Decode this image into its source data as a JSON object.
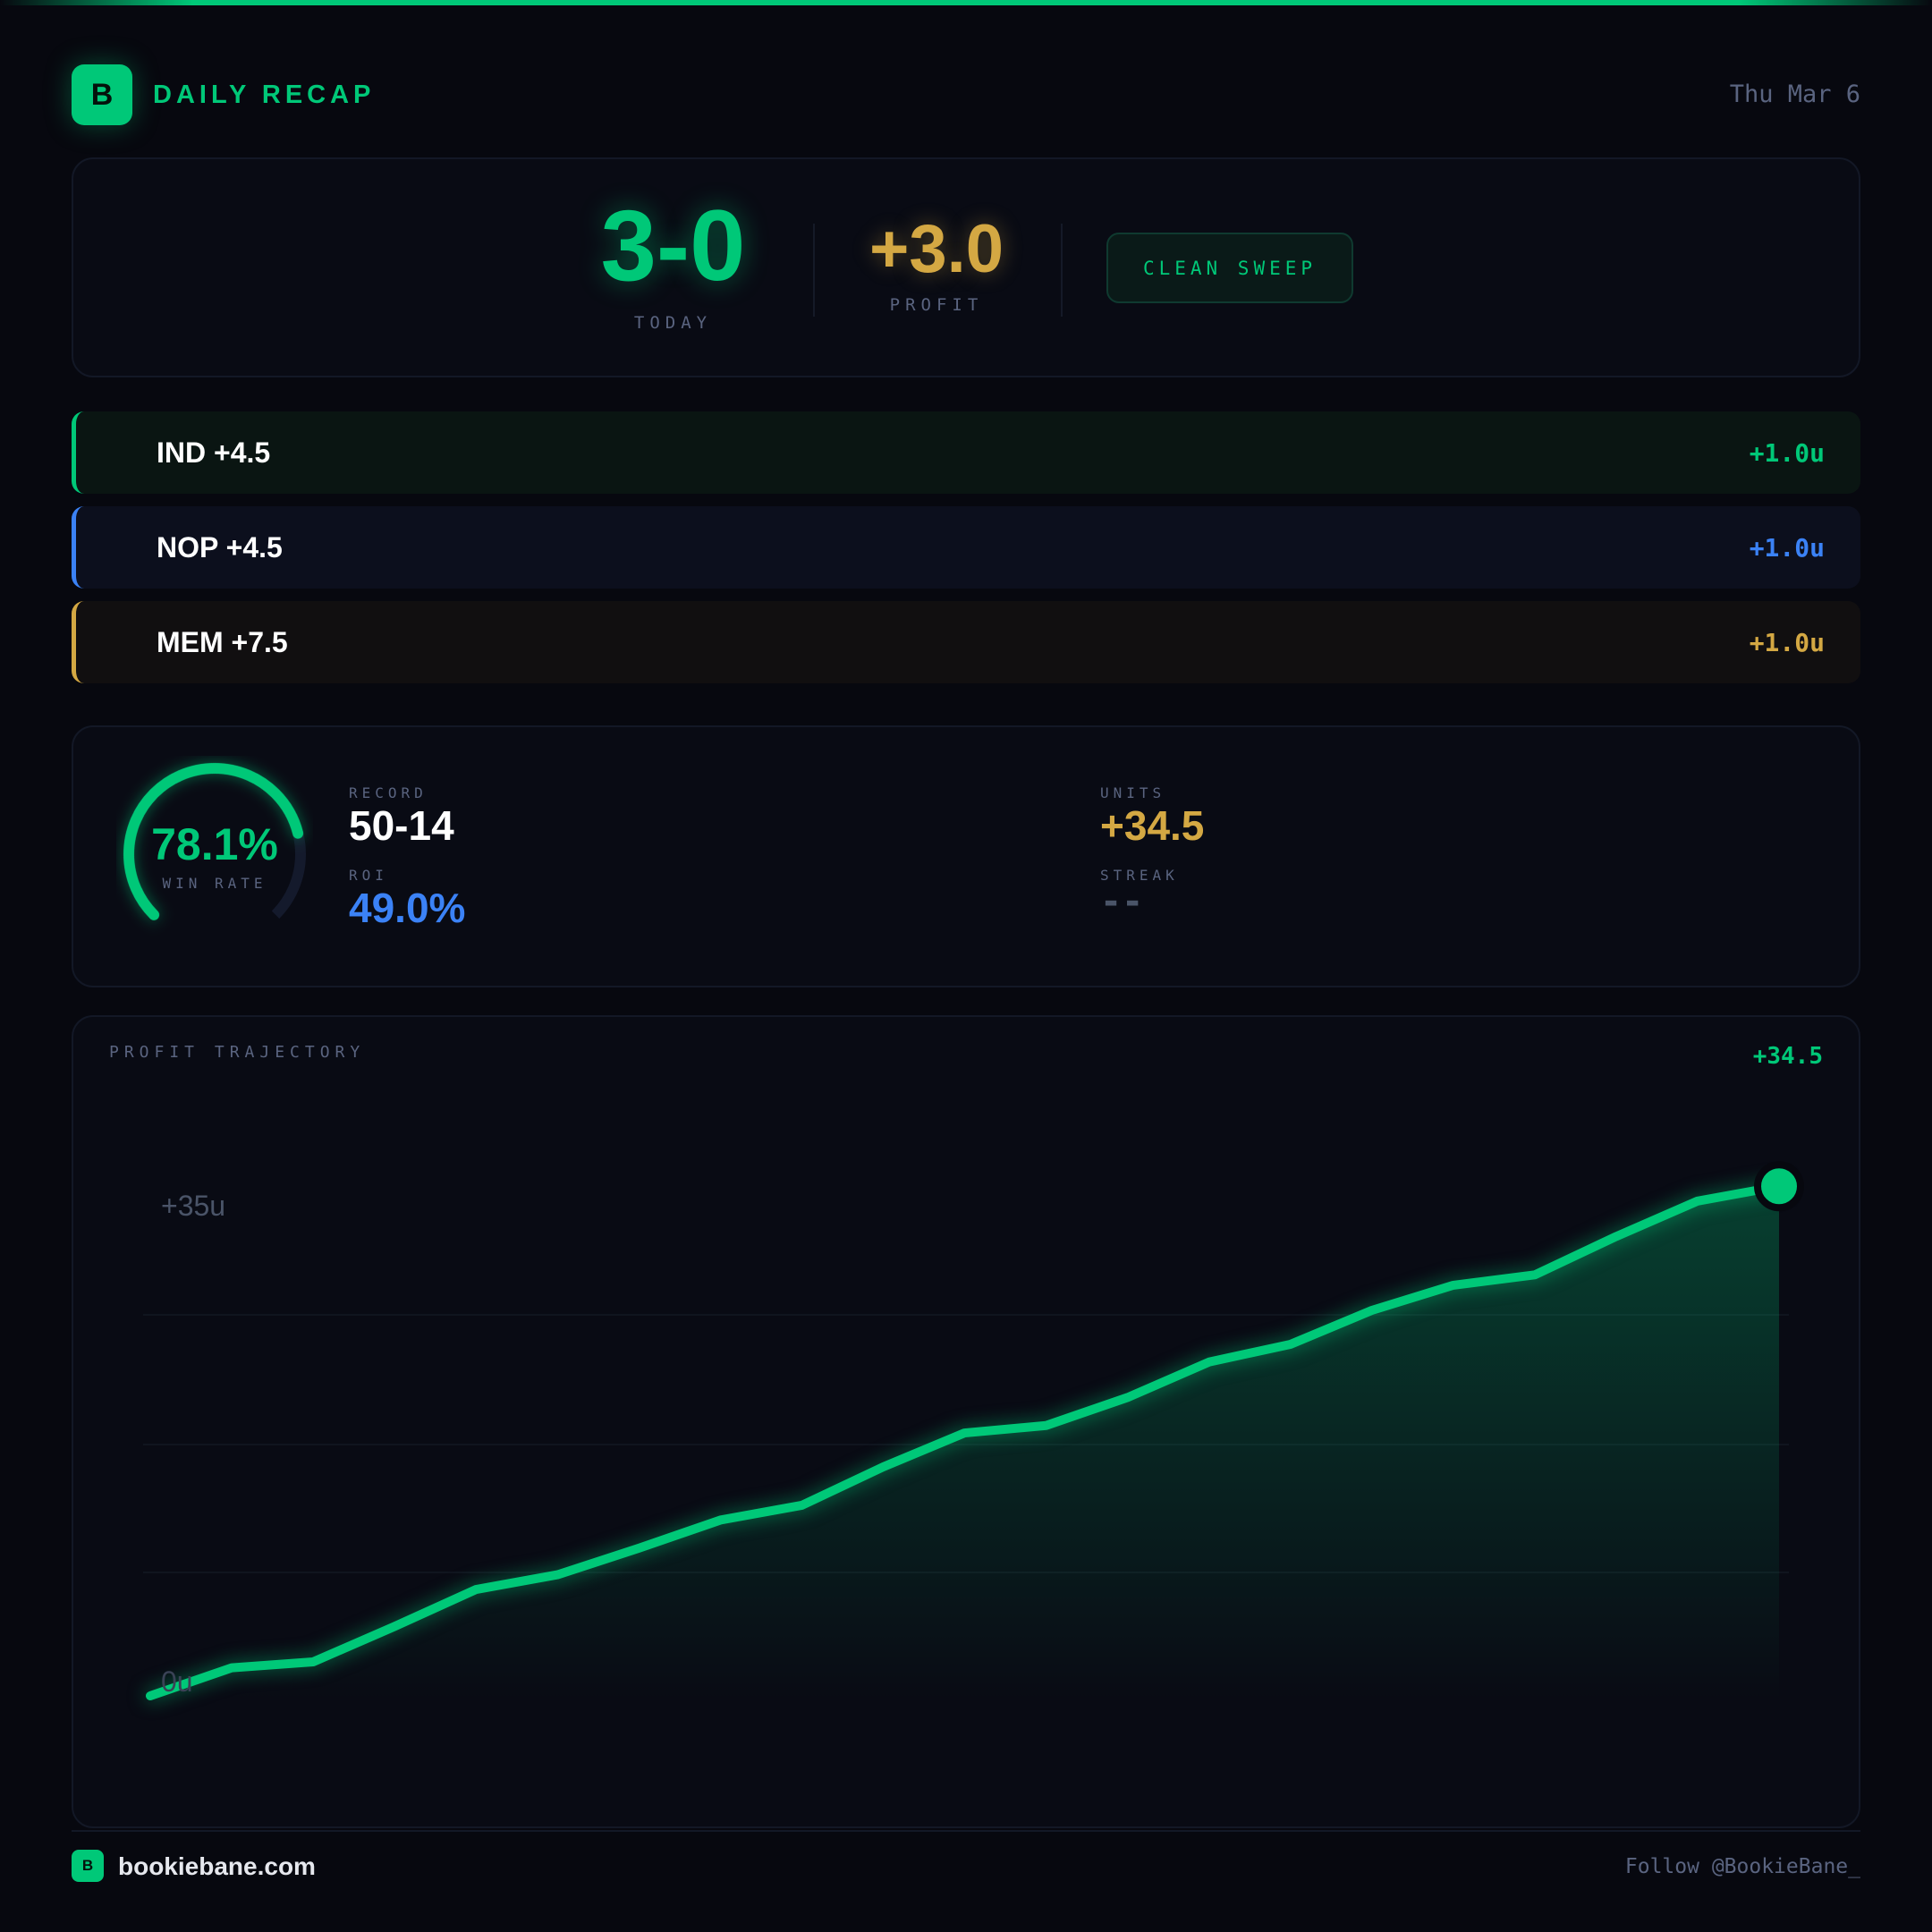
{
  "header": {
    "logo_letter": "B",
    "title": "DAILY RECAP",
    "date": "Thu Mar 6"
  },
  "hero": {
    "record": "3-0",
    "record_label": "TODAY",
    "profit": "+3.0",
    "profit_label": "PROFIT",
    "badge": "CLEAN SWEEP"
  },
  "picks": [
    {
      "team": "IND +4.5",
      "units": "+1.0u",
      "color": "#00c878"
    },
    {
      "team": "NOP +4.5",
      "units": "+1.0u",
      "color": "#3b82f6"
    },
    {
      "team": "MEM +7.5",
      "units": "+1.0u",
      "color": "#d4a843"
    }
  ],
  "stats": {
    "win_rate": "78.1%",
    "win_rate_value": 78.1,
    "win_rate_label": "WIN RATE",
    "record_label": "RECORD",
    "record": "50-14",
    "roi_label": "ROI",
    "roi": "49.0%",
    "units_label": "UNITS",
    "units": "+34.5",
    "streak_label": "STREAK",
    "streak": "--"
  },
  "chart_data": {
    "type": "area",
    "title": "PROFIT TRAJECTORY",
    "total_label": "+34.5",
    "ytick_labels": [
      "+35u",
      "0u"
    ],
    "ylim": [
      0,
      35
    ],
    "grid": true,
    "x": [
      1,
      2,
      3,
      4,
      5,
      6,
      7,
      8,
      9,
      10,
      11,
      12,
      13,
      14,
      15,
      16,
      17,
      18,
      19,
      20,
      21
    ],
    "values": [
      0,
      1.9,
      2.3,
      4.7,
      7.2,
      8.2,
      10.0,
      11.9,
      12.9,
      15.5,
      17.8,
      18.3,
      20.2,
      22.6,
      23.8,
      26.1,
      27.8,
      28.5,
      31.1,
      33.5,
      34.5
    ],
    "color": "#00c878"
  },
  "footer": {
    "logo_letter": "B",
    "site": "bookiebane.com",
    "follow": "Follow @BookieBane_"
  }
}
